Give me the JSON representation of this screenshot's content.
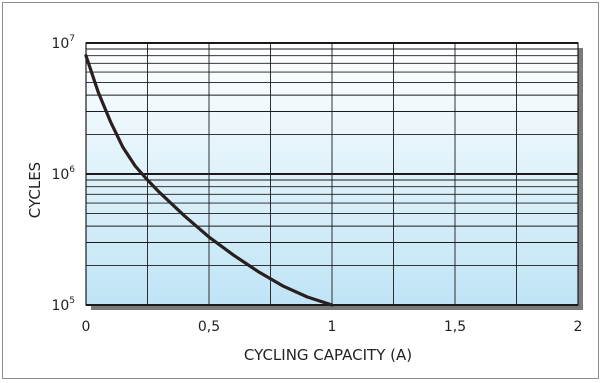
{
  "chart_data": {
    "type": "line",
    "title": "",
    "xlabel": "CYCLING CAPACITY (A)",
    "ylabel": "CYCLES",
    "xlim": [
      0,
      2
    ],
    "ylim": [
      100000,
      10000000
    ],
    "yscale": "log",
    "grid": true,
    "x_ticks": [
      {
        "value": 0,
        "label": "0"
      },
      {
        "value": 0.5,
        "label": "0,5"
      },
      {
        "value": 1,
        "label": "1"
      },
      {
        "value": 1.5,
        "label": "1,5"
      },
      {
        "value": 2,
        "label": "2"
      }
    ],
    "y_ticks": [
      {
        "value": 100000,
        "base": "10",
        "exp": "5"
      },
      {
        "value": 1000000,
        "base": "10",
        "exp": "6"
      },
      {
        "value": 10000000,
        "base": "10",
        "exp": "7"
      }
    ],
    "series": [
      {
        "x": [
          0.0,
          0.05,
          0.1,
          0.15,
          0.2,
          0.25,
          0.3,
          0.4,
          0.5,
          0.6,
          0.7,
          0.8,
          0.9,
          1.0
        ],
        "y": [
          8000000,
          4200000,
          2500000,
          1600000,
          1150000,
          900000,
          720000,
          480000,
          330000,
          240000,
          180000,
          140000,
          115000,
          100000
        ]
      }
    ],
    "colors": {
      "plot_background": "#bfe4f5",
      "grid_line": "#1b1b1b",
      "series_line": "#2a1f1f",
      "shadow": "#7a7a7a"
    }
  }
}
